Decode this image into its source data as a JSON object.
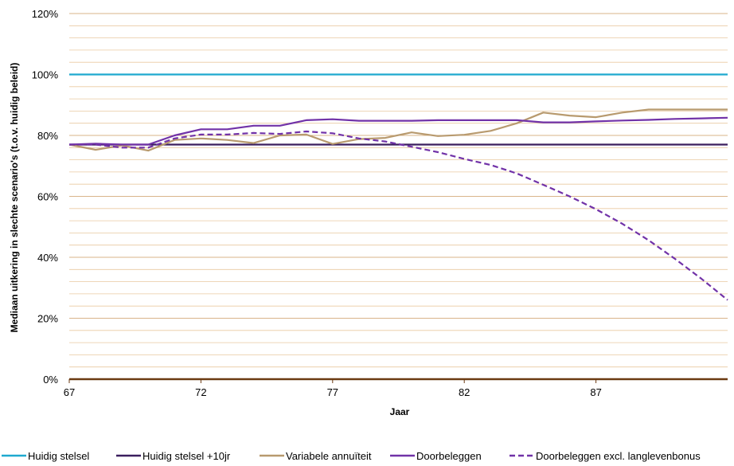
{
  "chart_data": {
    "type": "line",
    "xlabel": "Jaar",
    "ylabel": "Mediaan uitkering in slechte scenario's (t.o.v. huidig beleid)",
    "xlim": [
      67,
      92
    ],
    "ylim": [
      0,
      120
    ],
    "x_ticks": [
      "67",
      "72",
      "77",
      "82",
      "87"
    ],
    "y_ticks": [
      "0%",
      "20%",
      "40%",
      "60%",
      "80%",
      "100%",
      "120%"
    ],
    "grid": "horizontal minor lines every 4%",
    "legend_position": "bottom",
    "x": [
      67,
      68,
      69,
      70,
      71,
      72,
      73,
      74,
      75,
      76,
      77,
      78,
      79,
      80,
      81,
      82,
      83,
      84,
      85,
      86,
      87,
      88,
      89,
      90,
      91,
      92
    ],
    "series": [
      {
        "name": "Huidig stelsel",
        "color": "#1FA9CF",
        "dash": "solid",
        "values": [
          100,
          100,
          100,
          100,
          100,
          100,
          100,
          100,
          100,
          100,
          100,
          100,
          100,
          100,
          100,
          100,
          100,
          100,
          100,
          100,
          100,
          100,
          100,
          100,
          100,
          100
        ]
      },
      {
        "name": "Huidig stelsel +10jr",
        "color": "#3B1F5E",
        "dash": "solid",
        "values": [
          77,
          77,
          77,
          77,
          77,
          77,
          77,
          77,
          77,
          77,
          77,
          77,
          77,
          77,
          77,
          77,
          77,
          77,
          77,
          77,
          77,
          77,
          77,
          77,
          77,
          77
        ]
      },
      {
        "name": "Variabele annuïteit",
        "color": "#B89A6E",
        "dash": "solid",
        "values": [
          77,
          75.3,
          76.7,
          75,
          78.5,
          79,
          78.5,
          77.5,
          80,
          80.3,
          77.2,
          78.8,
          79.2,
          81,
          79.8,
          80.2,
          81.5,
          84,
          87.5,
          86.5,
          86,
          87.5,
          88.5,
          88.5,
          88.5,
          88.5
        ]
      },
      {
        "name": "Doorbeleggen",
        "color": "#7132A8",
        "dash": "solid",
        "values": [
          77,
          77.3,
          77,
          77,
          80,
          82,
          82,
          83.2,
          83.2,
          85,
          85.3,
          84.8,
          84.8,
          84.8,
          85,
          85,
          85,
          85,
          84.3,
          84.3,
          84.6,
          84.9,
          85.1,
          85.4,
          85.6,
          85.8
        ]
      },
      {
        "name": "Doorbeleggen excl. langlevenbonus",
        "color": "#7132A8",
        "dash": "dashed",
        "values": [
          77,
          77,
          76,
          76,
          79,
          80.3,
          80.3,
          80.8,
          80.5,
          81.3,
          80.7,
          79,
          78,
          76.3,
          74.5,
          72.3,
          70.3,
          67.5,
          63.8,
          60,
          55.8,
          51,
          45.6,
          39.5,
          33,
          26
        ]
      }
    ]
  }
}
